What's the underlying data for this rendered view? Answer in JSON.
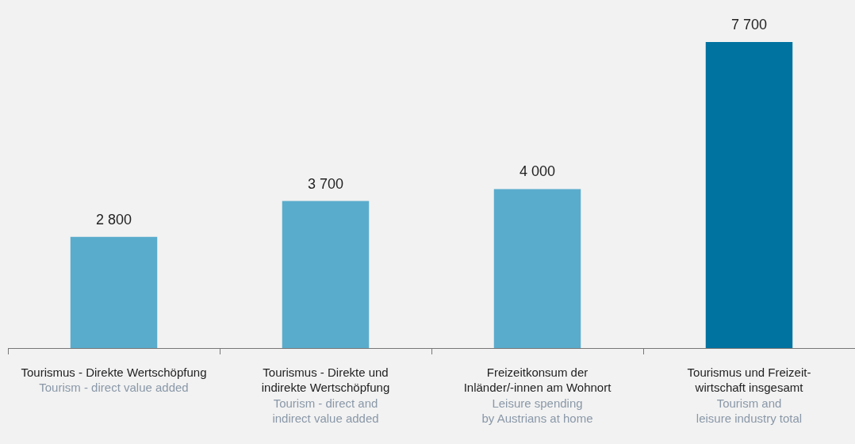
{
  "chart_data": {
    "type": "bar",
    "categories": [
      "Tourismus - Direkte Wertschöpfung",
      "Tourismus - Direkte und\nindirekte Wertschöpfung",
      "Freizeitkonsum der\nInländer/-innen am Wohnort",
      "Tourismus und Freizeit-\nwirtschaft insgesamt"
    ],
    "values": [
      2800,
      3700,
      4000,
      7700
    ],
    "value_labels": [
      "2 800",
      "3 700",
      "4 000",
      "7 700"
    ],
    "colors": [
      "#5aaccc",
      "#5aaccc",
      "#5aaccc",
      "#0073a0"
    ],
    "grid": false,
    "legend": false,
    "annotations": [
      "Tourism - direct value added",
      "Tourism - direct and\nindirect value added",
      "Leisure spending\nby Austrians at home",
      "Tourism and\nleisure industry total"
    ]
  }
}
